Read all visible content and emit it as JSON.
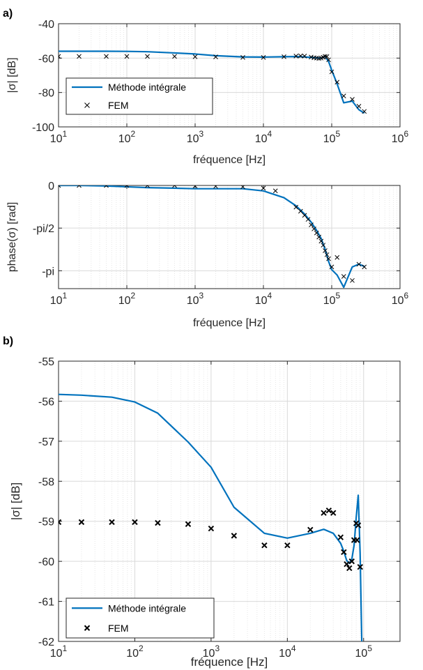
{
  "panel_labels": {
    "a": "a)",
    "b": "b)"
  },
  "chart_data": [
    {
      "type": "line",
      "panel": "a",
      "xlabel": "fréquence [Hz]",
      "ylabel": "|σ| [dB]",
      "xscale": "log",
      "xlim": [
        10,
        1000000
      ],
      "ylim": [
        -100,
        -40
      ],
      "xtick_exponents": [
        "1",
        "2",
        "3",
        "4",
        "5",
        "6"
      ],
      "xtick_base": "10",
      "yticks": [
        -40,
        -60,
        -80,
        -100
      ],
      "ytick_labels": [
        "-40",
        "-60",
        "-80",
        "-100"
      ],
      "grid": true,
      "legend": {
        "position": "bottom-left",
        "entries": [
          "Méthode intégrale",
          "FEM"
        ]
      },
      "series": [
        {
          "name": "Méthode intégrale",
          "style": "line",
          "color": "#0072BD",
          "x": [
            10,
            20,
            50,
            100,
            200,
            500,
            1000,
            2000,
            5000,
            10000,
            20000,
            30000,
            40000,
            50000,
            60000,
            70000,
            80000,
            90000,
            100000,
            120000,
            150000,
            200000,
            250000,
            300000
          ],
          "y": [
            -56,
            -56,
            -56,
            -56.1,
            -56.3,
            -57,
            -57.6,
            -58.6,
            -59.3,
            -59.4,
            -59.2,
            -59.1,
            -59.3,
            -59.6,
            -59.8,
            -60,
            -59,
            -62,
            -67,
            -75,
            -86,
            -85,
            -90,
            -92
          ]
        },
        {
          "name": "FEM",
          "style": "x",
          "color": "#000000",
          "x": [
            10,
            20,
            50,
            100,
            200,
            500,
            1000,
            2000,
            5000,
            10000,
            20000,
            30000,
            35000,
            40000,
            50000,
            55000,
            60000,
            65000,
            70000,
            75000,
            80000,
            85000,
            90000,
            100000,
            120000,
            150000,
            200000,
            250000,
            300000
          ],
          "y": [
            -59,
            -59,
            -59,
            -59,
            -59,
            -59,
            -59.2,
            -59.3,
            -59.6,
            -59.6,
            -59.2,
            -58.8,
            -58.7,
            -58.8,
            -59.4,
            -59.8,
            -60,
            -60.2,
            -60,
            -59.5,
            -59,
            -59.1,
            -61,
            -68,
            -74,
            -82,
            -84,
            -88,
            -91
          ]
        }
      ]
    },
    {
      "type": "line",
      "panel": "a-phase",
      "xlabel": "fréquence [Hz]",
      "ylabel": "phase(σ) [rad]",
      "xscale": "log",
      "xlim": [
        10,
        1000000
      ],
      "ylim": [
        -3.8,
        0
      ],
      "xtick_exponents": [
        "1",
        "2",
        "3",
        "4",
        "5",
        "6"
      ],
      "xtick_base": "10",
      "yticks": [
        0,
        -1.5708,
        -3.1416
      ],
      "ytick_labels": [
        "0",
        "-pi/2",
        "-pi"
      ],
      "grid": true,
      "series": [
        {
          "name": "Méthode intégrale",
          "style": "line",
          "color": "#0072BD",
          "x": [
            10,
            20,
            50,
            100,
            200,
            500,
            1000,
            2000,
            5000,
            10000,
            20000,
            30000,
            40000,
            50000,
            60000,
            70000,
            80000,
            90000,
            100000,
            120000,
            150000,
            200000,
            250000,
            300000
          ],
          "y": [
            0,
            0,
            -0.02,
            -0.05,
            -0.08,
            -0.1,
            -0.12,
            -0.12,
            -0.12,
            -0.2,
            -0.45,
            -0.75,
            -1.05,
            -1.35,
            -1.65,
            -1.95,
            -2.35,
            -2.8,
            -3.1,
            -3.3,
            -3.75,
            -3.0,
            -2.9,
            -2.98
          ]
        },
        {
          "name": "FEM",
          "style": "x",
          "color": "#000000",
          "x": [
            10,
            20,
            50,
            100,
            200,
            500,
            1000,
            2000,
            5000,
            10000,
            15000,
            30000,
            35000,
            40000,
            45000,
            50000,
            55000,
            60000,
            65000,
            70000,
            75000,
            80000,
            85000,
            90000,
            100000,
            120000,
            150000,
            200000,
            250000,
            300000
          ],
          "y": [
            0,
            0,
            0,
            0,
            0,
            0,
            -0.02,
            -0.03,
            -0.05,
            -0.1,
            -0.2,
            -0.8,
            -0.95,
            -1.1,
            -1.25,
            -1.45,
            -1.6,
            -1.75,
            -1.9,
            -2.05,
            -2.2,
            -2.4,
            -2.55,
            -2.7,
            -3.0,
            -2.65,
            -3.35,
            -3.5,
            -2.9,
            -3.0
          ]
        }
      ]
    },
    {
      "type": "line",
      "panel": "b",
      "xlabel": "fréquence [Hz]",
      "ylabel": "|σ| [dB]",
      "xscale": "log",
      "xlim": [
        10,
        300000
      ],
      "ylim": [
        -62,
        -55
      ],
      "xtick_exponents": [
        "1",
        "2",
        "3",
        "4",
        "5"
      ],
      "xtick_base": "10",
      "yticks": [
        -55,
        -56,
        -57,
        -58,
        -59,
        -60,
        -61,
        -62
      ],
      "ytick_labels": [
        "-55",
        "-56",
        "-57",
        "-58",
        "-59",
        "-60",
        "-61",
        "-62"
      ],
      "grid": true,
      "legend": {
        "position": "bottom-left",
        "entries": [
          "Méthode intégrale",
          "FEM"
        ]
      },
      "series": [
        {
          "name": "Méthode intégrale",
          "style": "line",
          "color": "#0072BD",
          "x": [
            10,
            20,
            50,
            100,
            200,
            500,
            1000,
            2000,
            5000,
            10000,
            20000,
            30000,
            40000,
            50000,
            55000,
            60000,
            65000,
            70000,
            75000,
            80000,
            85000,
            90000,
            95000
          ],
          "y": [
            -55.83,
            -55.85,
            -55.9,
            -56.02,
            -56.3,
            -57.02,
            -57.65,
            -58.65,
            -59.3,
            -59.42,
            -59.3,
            -59.2,
            -59.3,
            -59.55,
            -59.75,
            -59.98,
            -60.05,
            -59.95,
            -59.6,
            -58.9,
            -58.35,
            -59.8,
            -62.2
          ]
        },
        {
          "name": "FEM",
          "style": "x",
          "color": "#000000",
          "x": [
            10,
            20,
            50,
            100,
            200,
            500,
            1000,
            2000,
            5000,
            10000,
            20000,
            30000,
            35000,
            40000,
            50000,
            55000,
            60000,
            65000,
            70000,
            75000,
            80000,
            82000,
            85000,
            90000
          ],
          "y": [
            -59.02,
            -59.02,
            -59.02,
            -59.02,
            -59.04,
            -59.07,
            -59.18,
            -59.36,
            -59.6,
            -59.6,
            -59.21,
            -58.79,
            -58.73,
            -58.79,
            -59.4,
            -59.77,
            -60.07,
            -60.17,
            -60.0,
            -59.47,
            -59.05,
            -59.47,
            -59.1,
            -60.14
          ]
        }
      ]
    }
  ]
}
